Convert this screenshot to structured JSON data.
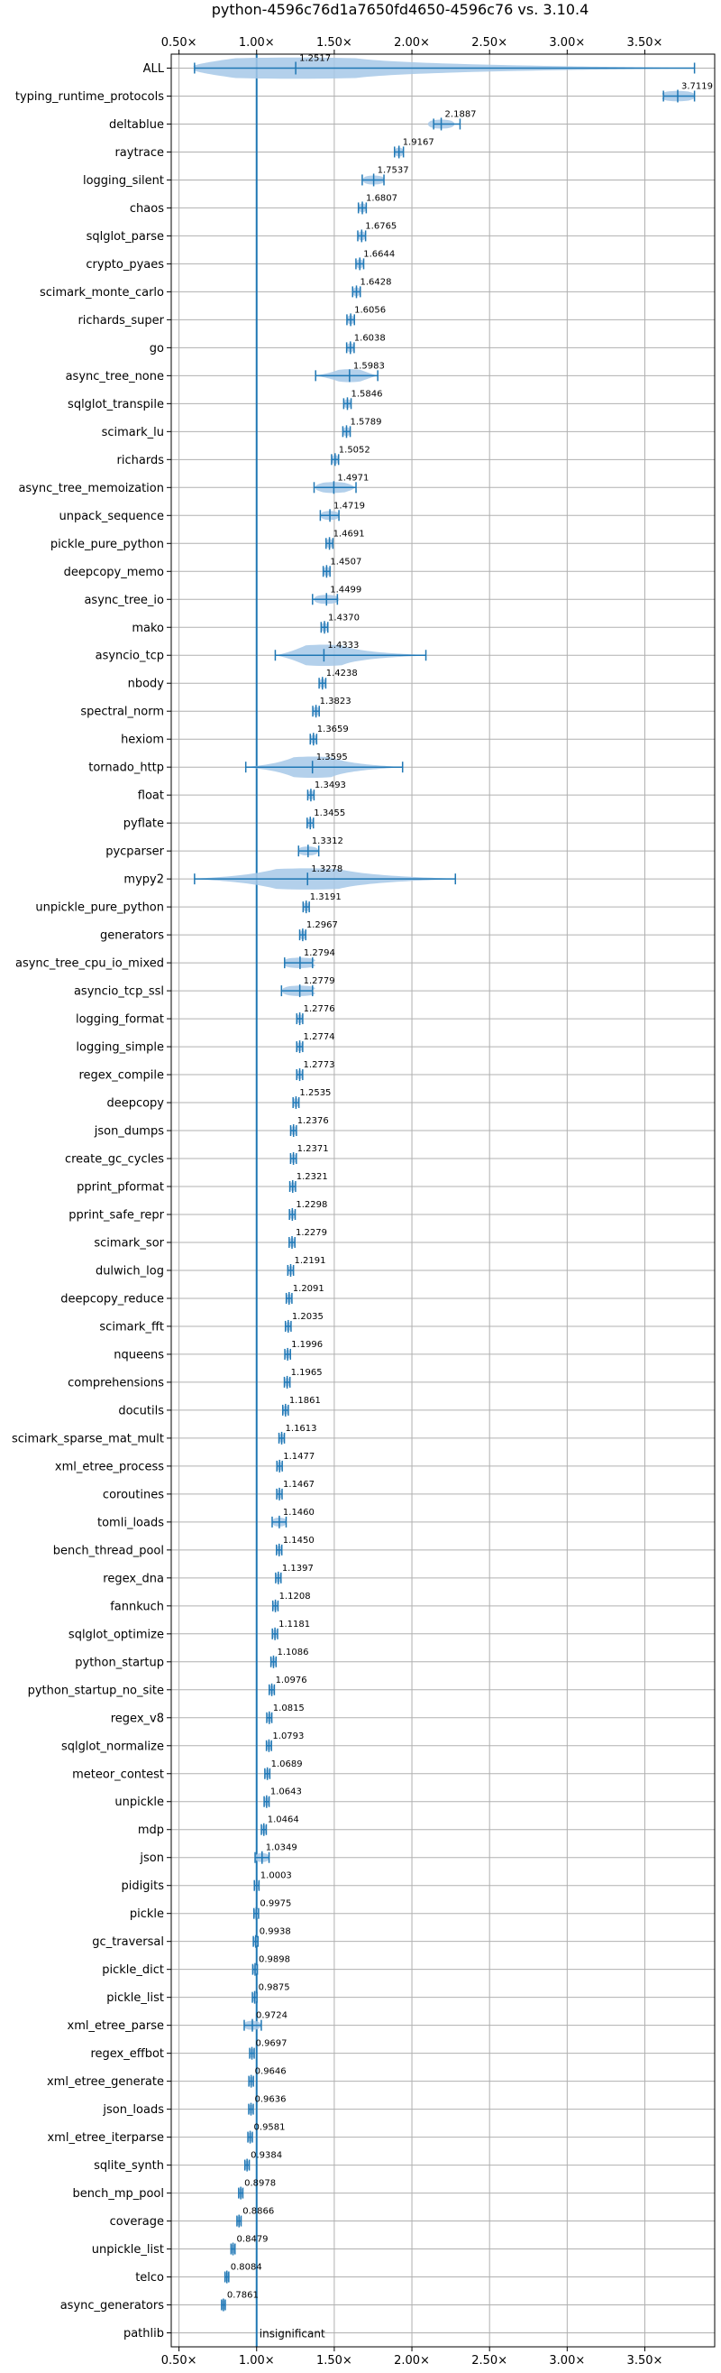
{
  "chart_data": {
    "type": "violin",
    "title": "python-4596c76d1a7650fd4650-4596c76 vs. 3.10.4",
    "xlabel": "",
    "ylabel": "",
    "xlim": [
      0.45,
      3.95
    ],
    "xticks": [
      0.5,
      1.0,
      1.5,
      2.0,
      2.5,
      3.0,
      3.5
    ],
    "xtick_labels": [
      "0.50×",
      "1.00×",
      "1.50×",
      "2.00×",
      "2.50×",
      "3.00×",
      "3.50×"
    ],
    "xtick_labels_top": [
      "0.50×",
      "1.00×",
      "1.50×",
      "2.00×",
      "2.50×",
      "3.00×",
      "3.50×"
    ],
    "reference_line": 1.0,
    "grid": true,
    "accent_color": "#1f77b4",
    "violin_color": "#a6c8e8",
    "insignificant_label": "insignificant",
    "categories": [
      "ALL",
      "typing_runtime_protocols",
      "deltablue",
      "raytrace",
      "logging_silent",
      "chaos",
      "sqlglot_parse",
      "crypto_pyaes",
      "scimark_monte_carlo",
      "richards_super",
      "go",
      "async_tree_none",
      "sqlglot_transpile",
      "scimark_lu",
      "richards",
      "async_tree_memoization",
      "unpack_sequence",
      "pickle_pure_python",
      "deepcopy_memo",
      "async_tree_io",
      "mako",
      "asyncio_tcp",
      "nbody",
      "spectral_norm",
      "hexiom",
      "tornado_http",
      "float",
      "pyflate",
      "pycparser",
      "mypy2",
      "unpickle_pure_python",
      "generators",
      "async_tree_cpu_io_mixed",
      "asyncio_tcp_ssl",
      "logging_format",
      "logging_simple",
      "regex_compile",
      "deepcopy",
      "json_dumps",
      "create_gc_cycles",
      "pprint_pformat",
      "pprint_safe_repr",
      "scimark_sor",
      "dulwich_log",
      "deepcopy_reduce",
      "scimark_fft",
      "nqueens",
      "comprehensions",
      "docutils",
      "scimark_sparse_mat_mult",
      "xml_etree_process",
      "coroutines",
      "tomli_loads",
      "bench_thread_pool",
      "regex_dna",
      "fannkuch",
      "sqlglot_optimize",
      "python_startup",
      "python_startup_no_site",
      "regex_v8",
      "sqlglot_normalize",
      "meteor_contest",
      "unpickle",
      "mdp",
      "json",
      "pidigits",
      "pickle",
      "gc_traversal",
      "pickle_dict",
      "pickle_list",
      "xml_etree_parse",
      "regex_effbot",
      "xml_etree_generate",
      "json_loads",
      "xml_etree_iterparse",
      "sqlite_synth",
      "bench_mp_pool",
      "coverage",
      "unpickle_list",
      "telco",
      "async_generators",
      "pathlib"
    ],
    "values": [
      1.2517,
      3.7119,
      2.1887,
      1.9167,
      1.7537,
      1.6807,
      1.6765,
      1.6644,
      1.6428,
      1.6056,
      1.6038,
      1.5983,
      1.5846,
      1.5789,
      1.5052,
      1.4971,
      1.4719,
      1.4691,
      1.4507,
      1.4499,
      1.437,
      1.4333,
      1.4238,
      1.3823,
      1.3659,
      1.3595,
      1.3493,
      1.3455,
      1.3312,
      1.3278,
      1.3191,
      1.2967,
      1.2794,
      1.2779,
      1.2776,
      1.2774,
      1.2773,
      1.2535,
      1.2376,
      1.2371,
      1.2321,
      1.2298,
      1.2279,
      1.2191,
      1.2091,
      1.2035,
      1.1996,
      1.1965,
      1.1861,
      1.1613,
      1.1477,
      1.1467,
      1.146,
      1.145,
      1.1397,
      1.1208,
      1.1181,
      1.1086,
      1.0976,
      1.0815,
      1.0793,
      1.0689,
      1.0643,
      1.0464,
      1.0349,
      1.0003,
      0.9975,
      0.9938,
      0.9898,
      0.9875,
      0.9724,
      0.9697,
      0.9646,
      0.9636,
      0.9581,
      0.9384,
      0.8978,
      0.8866,
      0.8479,
      0.8084,
      0.7861,
      null
    ],
    "value_labels": [
      "1.2517",
      "3.7119",
      "2.1887",
      "1.9167",
      "1.7537",
      "1.6807",
      "1.6765",
      "1.6644",
      "1.6428",
      "1.6056",
      "1.6038",
      "1.5983",
      "1.5846",
      "1.5789",
      "1.5052",
      "1.4971",
      "1.4719",
      "1.4691",
      "1.4507",
      "1.4499",
      "1.4370",
      "1.4333",
      "1.4238",
      "1.3823",
      "1.3659",
      "1.3595",
      "1.3493",
      "1.3455",
      "1.3312",
      "1.3278",
      "1.3191",
      "1.2967",
      "1.2794",
      "1.2779",
      "1.2776",
      "1.2774",
      "1.2773",
      "1.2535",
      "1.2376",
      "1.2371",
      "1.2321",
      "1.2298",
      "1.2279",
      "1.2191",
      "1.2091",
      "1.2035",
      "1.1996",
      "1.1965",
      "1.1861",
      "1.1613",
      "1.1477",
      "1.1467",
      "1.1460",
      "1.1450",
      "1.1397",
      "1.1208",
      "1.1181",
      "1.1086",
      "1.0976",
      "1.0815",
      "1.0793",
      "1.0689",
      "1.0643",
      "1.0464",
      "1.0349",
      "1.0003",
      "0.9975",
      "0.9938",
      "0.9898",
      "0.9875",
      "0.9724",
      "0.9697",
      "0.9646",
      "0.9636",
      "0.9581",
      "0.9384",
      "0.8978",
      "0.8866",
      "0.8479",
      "0.8084",
      "0.7861",
      ""
    ],
    "ranges": {
      "ALL": [
        0.6,
        3.82
      ],
      "typing_runtime_protocols": [
        3.62,
        3.82
      ],
      "deltablue": [
        2.14,
        2.31
      ],
      "logging_silent": [
        1.68,
        1.82
      ],
      "async_tree_none": [
        1.38,
        1.78
      ],
      "async_tree_memoization": [
        1.37,
        1.64
      ],
      "unpack_sequence": [
        1.41,
        1.53
      ],
      "async_tree_io": [
        1.36,
        1.52
      ],
      "asyncio_tcp": [
        1.12,
        2.09
      ],
      "tornado_http": [
        0.93,
        1.94
      ],
      "pycparser": [
        1.27,
        1.4
      ],
      "mypy2": [
        0.6,
        2.28
      ],
      "async_tree_cpu_io_mixed": [
        1.18,
        1.36
      ],
      "asyncio_tcp_ssl": [
        1.16,
        1.36
      ],
      "tomli_loads": [
        1.1,
        1.19
      ],
      "json": [
        0.99,
        1.08
      ],
      "xml_etree_parse": [
        0.92,
        1.03
      ]
    }
  }
}
